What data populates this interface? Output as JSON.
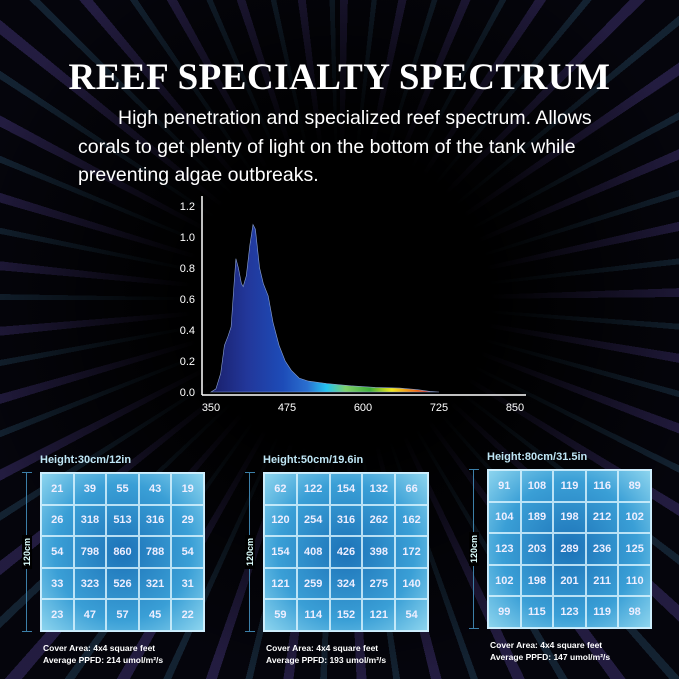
{
  "title": "REEF SPECIALTY SPECTRUM",
  "description": "High penetration and specialized reef spectrum. Allows corals to get plenty of light on the bottom of the tank while preventing algae outbreaks.",
  "chart_data": {
    "type": "area",
    "title": "",
    "xlabel": "",
    "ylabel": "",
    "xlim": [
      350,
      850
    ],
    "ylim": [
      0,
      1.2
    ],
    "x_ticks": [
      "350",
      "475",
      "600",
      "725",
      "850"
    ],
    "y_ticks": [
      "0.0",
      "0.2",
      "0.4",
      "0.6",
      "0.8",
      "1.0",
      "1.2"
    ],
    "fill": "visible-spectrum gradient",
    "points": [
      [
        350,
        0
      ],
      [
        358,
        0.02
      ],
      [
        366,
        0.12
      ],
      [
        372,
        0.3
      ],
      [
        378,
        0.36
      ],
      [
        383,
        0.42
      ],
      [
        388,
        0.7
      ],
      [
        391,
        0.86
      ],
      [
        395,
        0.8
      ],
      [
        400,
        0.7
      ],
      [
        403,
        0.68
      ],
      [
        408,
        0.75
      ],
      [
        414,
        0.95
      ],
      [
        419,
        1.08
      ],
      [
        423,
        1.05
      ],
      [
        430,
        0.8
      ],
      [
        436,
        0.7
      ],
      [
        444,
        0.62
      ],
      [
        452,
        0.45
      ],
      [
        462,
        0.3
      ],
      [
        472,
        0.2
      ],
      [
        482,
        0.14
      ],
      [
        495,
        0.09
      ],
      [
        510,
        0.07
      ],
      [
        540,
        0.055
      ],
      [
        580,
        0.04
      ],
      [
        620,
        0.03
      ],
      [
        660,
        0.025
      ],
      [
        690,
        0.015
      ],
      [
        710,
        0.004
      ],
      [
        725,
        0
      ]
    ]
  },
  "grids": [
    {
      "height": "Height:30cm/12in",
      "side": "120cm",
      "values": [
        [
          21,
          39,
          55,
          43,
          19
        ],
        [
          26,
          318,
          513,
          316,
          29
        ],
        [
          54,
          798,
          860,
          788,
          54
        ],
        [
          33,
          323,
          526,
          321,
          31
        ],
        [
          23,
          47,
          57,
          45,
          22
        ]
      ],
      "cover": "Cover Area: 4x4 square feet",
      "ppfd": "Average PPFD: 214 umol/m²/s"
    },
    {
      "height": "Height:50cm/19.6in",
      "side": "120cm",
      "values": [
        [
          62,
          122,
          154,
          132,
          66
        ],
        [
          120,
          254,
          316,
          262,
          162
        ],
        [
          154,
          408,
          426,
          398,
          172
        ],
        [
          121,
          259,
          324,
          275,
          140
        ],
        [
          59,
          114,
          152,
          121,
          54
        ]
      ],
      "cover": "Cover Area: 4x4 square feet",
      "ppfd": "Average PPFD: 193 umol/m²/s"
    },
    {
      "height": "Height:80cm/31.5in",
      "side": "120cm",
      "values": [
        [
          91,
          108,
          119,
          116,
          89
        ],
        [
          104,
          189,
          198,
          212,
          102
        ],
        [
          123,
          203,
          289,
          236,
          125
        ],
        [
          102,
          198,
          201,
          211,
          110
        ],
        [
          99,
          115,
          123,
          119,
          98
        ]
      ],
      "cover": "Cover Area: 4x4 square feet",
      "ppfd": "Average PPFD: 147 umol/m²/s"
    }
  ]
}
